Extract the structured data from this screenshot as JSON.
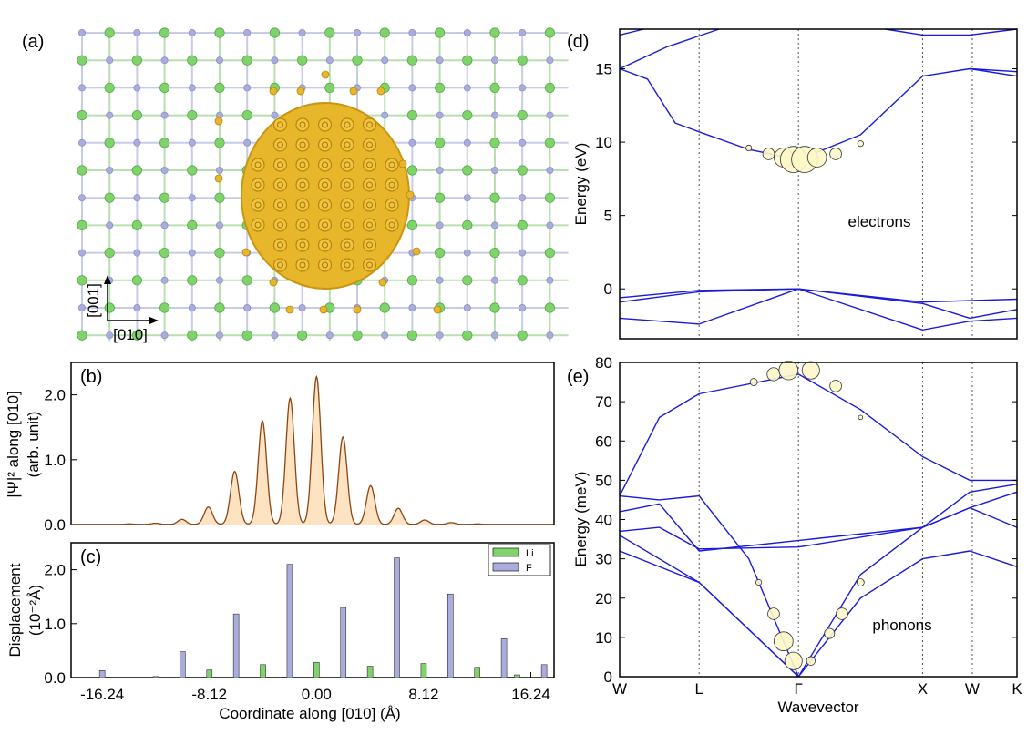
{
  "panel_labels": {
    "a": "(a)",
    "b": "(b)",
    "c": "(c)",
    "d": "(d)",
    "e": "(e)"
  },
  "panel_a": {
    "axis_vertical": "[001]",
    "axis_horizontal": "[010]",
    "colors": {
      "li_atom": "#7fd36b",
      "f_atom": "#a9acdc",
      "density": "#e8b62a"
    }
  },
  "chart_data": [
    {
      "id": "b",
      "type": "area",
      "ylabel": "|Ψ|² along [010]",
      "ylabel2": "(arb. unit)",
      "ylim": [
        0,
        2.5
      ],
      "yticks": [
        "0.0",
        "1.0",
        "2.0"
      ],
      "x": [
        -14.2,
        -12.2,
        -10.2,
        -8.2,
        -6.2,
        -4.1,
        -2.0,
        0.0,
        2.0,
        4.1,
        6.2,
        8.2,
        10.2,
        12.2,
        14.2
      ],
      "peaks": [
        0.01,
        0.02,
        0.08,
        0.27,
        0.82,
        1.6,
        1.95,
        2.28,
        1.35,
        0.6,
        0.25,
        0.07,
        0.03,
        0.01,
        0.0
      ],
      "color": "#8b4513",
      "fill": "#fde3c2"
    },
    {
      "id": "c",
      "type": "bar",
      "xlabel": "Coordinate along [010] (Å)",
      "ylabel": "Displacement",
      "ylabel2": "(10⁻²Å)",
      "ylim": [
        0,
        2.5
      ],
      "yticks": [
        "0.0",
        "1.0",
        "2.0"
      ],
      "xticks": [
        "-16.24",
        "-8.12",
        "0.00",
        "8.12",
        "16.24"
      ],
      "xtick_values": [
        -16.24,
        -8.12,
        0.0,
        8.12,
        16.24
      ],
      "xlim": [
        -18.6,
        18.0
      ],
      "legend": [
        {
          "name": "Li",
          "color": "#7fd36b"
        },
        {
          "name": "F",
          "color": "#a9acdc"
        }
      ],
      "series": [
        {
          "name": "F",
          "x": [
            -16.24,
            -12.18,
            -10.15,
            -6.09,
            -2.03,
            2.03,
            6.09,
            10.15,
            14.21,
            17.25
          ],
          "values": [
            0.13,
            0.02,
            0.48,
            1.18,
            2.1,
            1.3,
            2.22,
            1.55,
            0.72,
            0.24
          ]
        },
        {
          "name": "Li",
          "x": [
            -8.12,
            -4.06,
            0.0,
            4.06,
            8.12,
            12.18,
            15.2
          ],
          "values": [
            0.14,
            0.24,
            0.28,
            0.21,
            0.26,
            0.19,
            0.05
          ]
        }
      ]
    },
    {
      "id": "d",
      "type": "line",
      "ylabel": "Energy (eV)",
      "ylim": [
        -3.4,
        17.7
      ],
      "yticks": [
        "0",
        "5",
        "10",
        "15"
      ],
      "ytick_values": [
        0,
        5,
        10,
        15
      ],
      "kpoints": [
        "W",
        "L",
        "Γ",
        "X",
        "W",
        "K"
      ],
      "annotation": "electrons",
      "color": "#1a1adc",
      "bands": [
        [
          [
            0,
            17.3
          ],
          [
            0.3,
            18.0
          ]
        ],
        [
          [
            0,
            15.0
          ],
          [
            0.6,
            16.5
          ],
          [
            1.2,
            18.2
          ]
        ],
        [
          [
            0,
            15.0
          ],
          [
            0.35,
            14.3
          ],
          [
            0.7,
            11.3
          ],
          [
            1,
            10.7
          ],
          [
            1.5,
            9.5
          ],
          [
            2,
            8.8
          ],
          [
            2.5,
            10.5
          ],
          [
            3,
            14.5
          ],
          [
            3.5,
            15.0
          ],
          [
            4,
            14.8
          ]
        ],
        [
          [
            2.7,
            18.0
          ],
          [
            3,
            17.3
          ],
          [
            3.5,
            17.3
          ],
          [
            4,
            18.1
          ]
        ],
        [
          [
            3.5,
            15.0
          ],
          [
            4,
            14.5
          ]
        ],
        [
          [
            0,
            -0.6
          ],
          [
            1,
            -0.1
          ],
          [
            2,
            0.0
          ],
          [
            3,
            -1.0
          ],
          [
            3.5,
            -2.0
          ],
          [
            4,
            -1.4
          ]
        ],
        [
          [
            0,
            -0.9
          ],
          [
            1,
            -0.2
          ],
          [
            2,
            0.0
          ],
          [
            3,
            -0.9
          ],
          [
            4,
            -0.7
          ]
        ],
        [
          [
            0,
            -2.0
          ],
          [
            1,
            -2.4
          ],
          [
            2,
            0.0
          ],
          [
            3,
            -2.8
          ],
          [
            3.5,
            -2.2
          ],
          [
            4,
            -2.0
          ]
        ]
      ],
      "weights": [
        [
          1.5,
          9.6,
          0.04
        ],
        [
          1.7,
          9.2,
          0.08
        ],
        [
          1.85,
          8.95,
          0.13
        ],
        [
          1.95,
          8.82,
          0.18
        ],
        [
          2.05,
          8.82,
          0.18
        ],
        [
          2.15,
          8.95,
          0.13
        ],
        [
          2.3,
          9.2,
          0.08
        ],
        [
          2.5,
          9.9,
          0.04
        ]
      ]
    },
    {
      "id": "e",
      "type": "line",
      "xlabel": "Wavevector",
      "ylabel": "Energy (meV)",
      "ylim": [
        0,
        80
      ],
      "yticks": [
        "0",
        "10",
        "20",
        "30",
        "40",
        "50",
        "60",
        "70",
        "80"
      ],
      "ytick_values": [
        0,
        10,
        20,
        30,
        40,
        50,
        60,
        70,
        80
      ],
      "kpoints": [
        "W",
        "L",
        "Γ",
        "X",
        "W",
        "K"
      ],
      "annotation": "phonons",
      "color": "#1a1adc",
      "bands": [
        [
          [
            0,
            46
          ],
          [
            0.5,
            66
          ],
          [
            1,
            72
          ],
          [
            2,
            77
          ],
          [
            2.5,
            68
          ],
          [
            3,
            56
          ],
          [
            3.5,
            50
          ],
          [
            4,
            50
          ]
        ],
        [
          [
            0,
            46
          ],
          [
            0.5,
            45
          ],
          [
            1,
            46
          ],
          [
            1.5,
            30
          ],
          [
            2,
            0
          ],
          [
            2.5,
            26
          ],
          [
            3,
            38
          ],
          [
            3.5,
            47
          ],
          [
            4,
            49
          ]
        ],
        [
          [
            0,
            37
          ],
          [
            0.5,
            38
          ],
          [
            1,
            32.5
          ],
          [
            2,
            33
          ],
          [
            3,
            38
          ],
          [
            3.5,
            43
          ],
          [
            4,
            47
          ]
        ],
        [
          [
            0,
            36
          ],
          [
            1,
            24
          ],
          [
            1.5,
            12
          ],
          [
            2,
            0
          ],
          [
            2.5,
            20
          ],
          [
            3,
            30
          ],
          [
            3.5,
            32
          ],
          [
            4,
            28
          ]
        ],
        [
          [
            0,
            32
          ],
          [
            1,
            24
          ],
          [
            2,
            0
          ]
        ],
        [
          [
            0,
            42
          ],
          [
            0.5,
            44
          ],
          [
            1,
            32
          ],
          [
            3,
            38
          ],
          [
            3.5,
            43
          ],
          [
            4,
            38
          ]
        ]
      ],
      "weights": [
        [
          1.55,
          75,
          0.05
        ],
        [
          1.75,
          77,
          0.09
        ],
        [
          1.9,
          78,
          0.13
        ],
        [
          2.1,
          78,
          0.12
        ],
        [
          2.3,
          74,
          0.08
        ],
        [
          2.5,
          66,
          0.03
        ],
        [
          1.6,
          24,
          0.04
        ],
        [
          1.75,
          16,
          0.08
        ],
        [
          1.85,
          9,
          0.13
        ],
        [
          1.95,
          4,
          0.12
        ],
        [
          2.1,
          4,
          0.06
        ],
        [
          2.25,
          11,
          0.07
        ],
        [
          2.35,
          16,
          0.08
        ],
        [
          2.5,
          24,
          0.05
        ]
      ]
    }
  ]
}
